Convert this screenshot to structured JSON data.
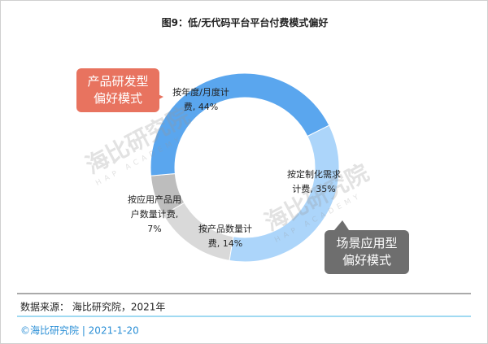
{
  "chart_data": {
    "type": "donut",
    "title": "图9：低/无代码平台平台付费模式偏好",
    "categories": [
      "按年度/月度计费",
      "按定制化需求计费",
      "按产品数量计费",
      "按应用产品用户数量计费"
    ],
    "values": [
      44,
      35,
      14,
      7
    ],
    "value_labels": [
      "按年度/月度计费, 44%",
      "按定制化需求计费, 35%",
      "按产品数量计费, 14%",
      "按应用产品用户数量计费, 7%"
    ],
    "colors": [
      "#5aa6ee",
      "#acd5fa",
      "#d9d9d9",
      "#bdbdbd"
    ],
    "callouts": [
      "产品研发型偏好模式",
      "场景应用型偏好模式"
    ],
    "watermark": "海比研究院",
    "watermark_sub": "HAP ACADEMY"
  },
  "footer": {
    "source": "数据来源： 海比研究院，2021年",
    "copyright": "©海比研究院  |  2021-1-20"
  }
}
